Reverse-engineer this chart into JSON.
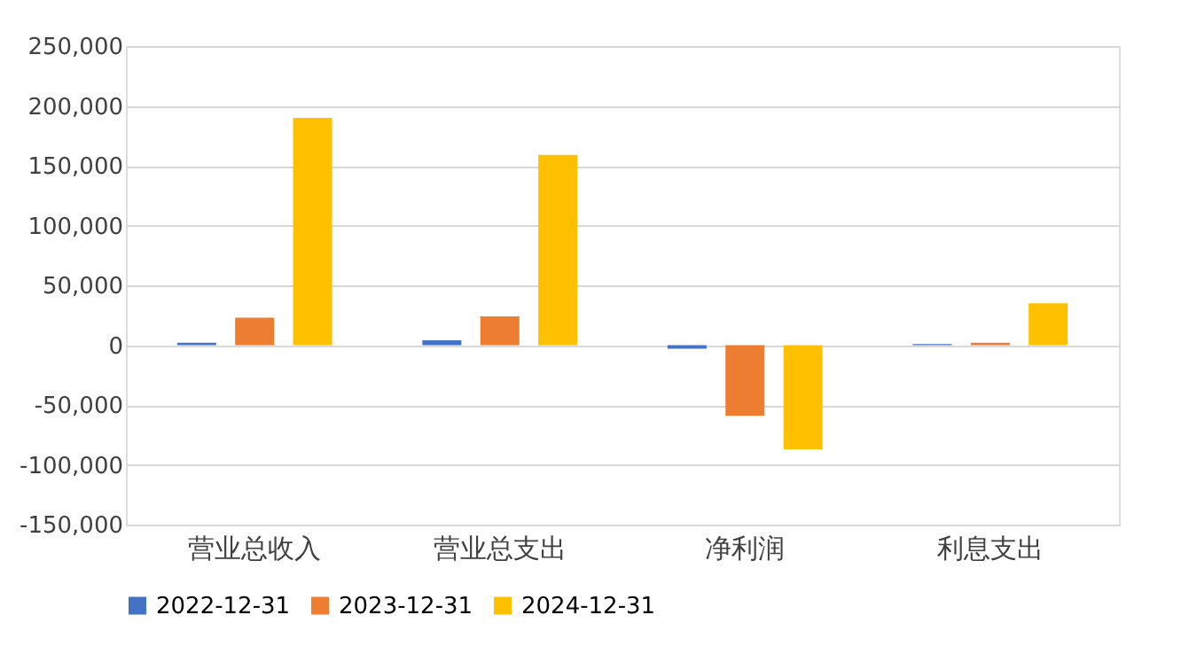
{
  "chart_data": {
    "type": "bar",
    "categories": [
      "营业总收入",
      "营业总支出",
      "净利润",
      "利息支出"
    ],
    "series": [
      {
        "name": "2022-12-31",
        "color": "#4472c4",
        "values": [
          2000,
          4000,
          -3000,
          1000
        ]
      },
      {
        "name": "2023-12-31",
        "color": "#ed7d31",
        "values": [
          23000,
          24000,
          -59000,
          2000
        ]
      },
      {
        "name": "2024-12-31",
        "color": "#ffc000",
        "values": [
          190000,
          159000,
          -87000,
          35000
        ]
      }
    ],
    "ylim": [
      -150000,
      250000
    ],
    "yticks": [
      {
        "value": -150000,
        "label": "-150,000"
      },
      {
        "value": -100000,
        "label": "-100,000"
      },
      {
        "value": -50000,
        "label": "-50,000"
      },
      0,
      {
        "value": 50000,
        "label": "50,000"
      },
      {
        "value": 100000,
        "label": "100,000"
      },
      {
        "value": 150000,
        "label": "150,000"
      },
      {
        "value": 200000,
        "label": "200,000"
      },
      {
        "value": 250000,
        "label": "250,000"
      }
    ],
    "grid": "y",
    "legend": "bottom"
  }
}
